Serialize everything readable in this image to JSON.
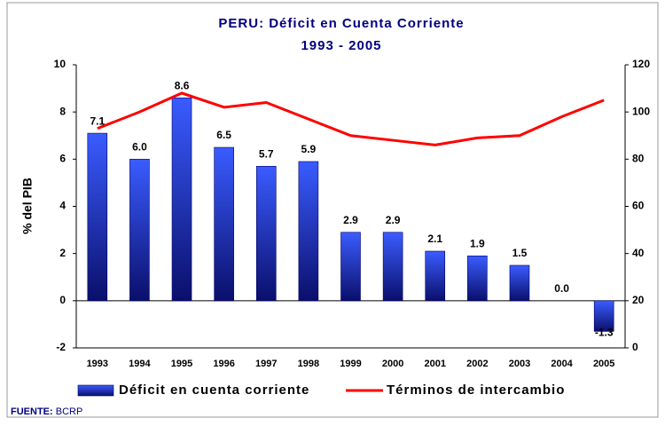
{
  "chart_data": {
    "type": "bar_line",
    "title": "PERU: Déficit en Cuenta Corriente",
    "subtitle": "1993 - 2005",
    "y_label": "% del PIB",
    "categories": [
      "1993",
      "1994",
      "1995",
      "1996",
      "1997",
      "1998",
      "1999",
      "2000",
      "2001",
      "2002",
      "2003",
      "2004",
      "2005"
    ],
    "series": [
      {
        "name": "Déficit en cuenta corriente",
        "type": "bar",
        "color": "#1f3fff",
        "values": [
          7.1,
          6.0,
          8.6,
          6.5,
          5.7,
          5.9,
          2.9,
          2.9,
          2.1,
          1.9,
          1.5,
          0.0,
          -1.3
        ],
        "value_labels": [
          "7.1",
          "6.0",
          "8.6",
          "6.5",
          "5.7",
          "5.9",
          "2.9",
          "2.9",
          "2.1",
          "1.9",
          "1.5",
          "0.0",
          "-1.3"
        ]
      },
      {
        "name": "Términos de intercambio",
        "type": "line",
        "color": "#ff0000",
        "axis": "y2",
        "values": [
          93,
          100,
          108,
          102,
          104,
          97,
          90,
          88,
          86,
          89,
          90,
          98,
          105
        ]
      }
    ],
    "ylim": [
      -2,
      10
    ],
    "yticks": [
      -2,
      0,
      2,
      4,
      6,
      8,
      10
    ],
    "y2lim": [
      0,
      120
    ],
    "y2ticks": [
      0,
      20,
      40,
      60,
      80,
      100,
      120
    ],
    "legend": "bottom",
    "source": {
      "label": "FUENTE:",
      "text": "BCRP"
    }
  }
}
